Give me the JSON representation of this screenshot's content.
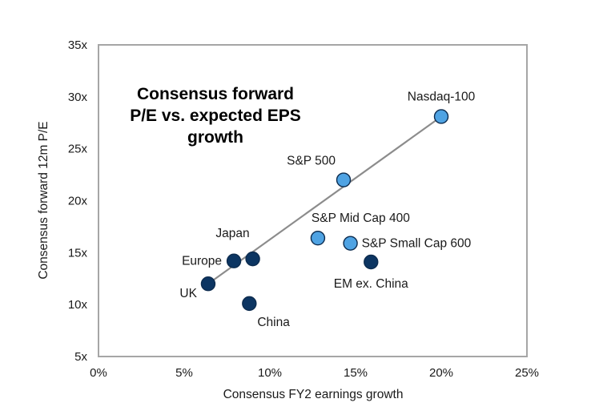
{
  "chart_data": {
    "type": "scatter",
    "title_lines": [
      "Consensus forward",
      "P/E vs. expected EPS",
      "growth"
    ],
    "xlabel": "Consensus FY2 earnings growth",
    "ylabel": "Consensus forward 12m P/E",
    "xlim": [
      0,
      25
    ],
    "ylim": [
      5,
      35
    ],
    "x_ticks": [
      0,
      5,
      10,
      15,
      20,
      25
    ],
    "x_tick_labels": [
      "0%",
      "5%",
      "10%",
      "15%",
      "20%",
      "25%"
    ],
    "y_ticks": [
      5,
      10,
      15,
      20,
      25,
      30,
      35
    ],
    "y_tick_labels": [
      "5x",
      "10x",
      "15x",
      "20x",
      "25x",
      "30x",
      "35x"
    ],
    "grid": false,
    "colors": {
      "us": "#4fa3e3",
      "intl": "#0c3562",
      "trend": "#8c8c8c",
      "frame": "#a6a6a6"
    },
    "points": [
      {
        "name": "Nasdaq-100",
        "x": 20.0,
        "y": 28.1,
        "group": "us",
        "label_pos": "above"
      },
      {
        "name": "S&P 500",
        "x": 14.3,
        "y": 22.0,
        "group": "us",
        "label_pos": "above-left"
      },
      {
        "name": "S&P Mid Cap 400",
        "x": 12.8,
        "y": 16.4,
        "group": "us",
        "label_pos": "above-right"
      },
      {
        "name": "S&P Small Cap 600",
        "x": 14.7,
        "y": 15.9,
        "group": "us",
        "label_pos": "right"
      },
      {
        "name": "EM ex. China",
        "x": 15.9,
        "y": 14.1,
        "group": "intl",
        "label_pos": "below"
      },
      {
        "name": "Japan",
        "x": 9.0,
        "y": 14.4,
        "group": "intl",
        "label_pos": "above-left"
      },
      {
        "name": "Europe",
        "x": 7.9,
        "y": 14.2,
        "group": "intl",
        "label_pos": "left"
      },
      {
        "name": "UK",
        "x": 6.4,
        "y": 12.0,
        "group": "intl",
        "label_pos": "below-left"
      },
      {
        "name": "China",
        "x": 8.8,
        "y": 10.1,
        "group": "intl",
        "label_pos": "below-right"
      }
    ],
    "trendline": {
      "x1": 6.4,
      "y1": 12.0,
      "x2": 20.0,
      "y2": 28.1
    }
  }
}
